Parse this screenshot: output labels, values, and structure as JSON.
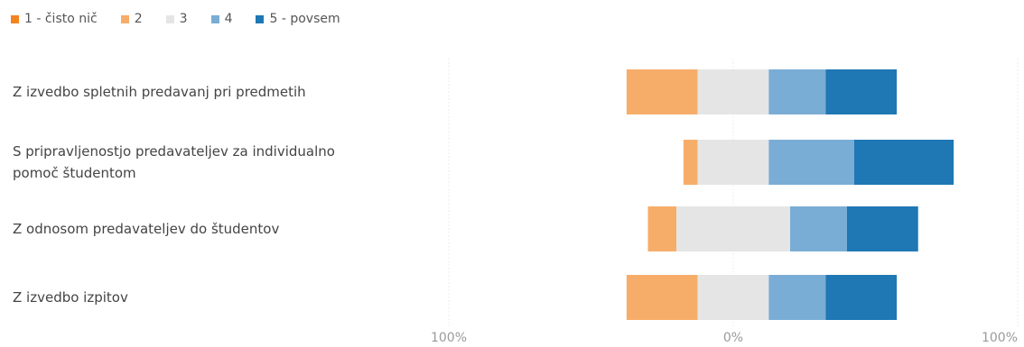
{
  "chart_data": {
    "type": "bar",
    "stacking": "diverging",
    "categories": [
      "Z izvedbo spletnih predavanj pri predmetih",
      "S pripravljenostjo predavateljev za individualno pomoč študentom",
      "Z odnosom predavateljev do študentov",
      "Z izvedbo izpitov"
    ],
    "series": [
      {
        "name": "1 - čisto nič",
        "color": "#f5841f",
        "values": [
          0,
          0,
          0,
          0
        ]
      },
      {
        "name": "2",
        "color": "#f7ad6a",
        "values": [
          25,
          5,
          10,
          25
        ]
      },
      {
        "name": "3",
        "color": "#e5e5e5",
        "values": [
          25,
          25,
          40,
          25
        ]
      },
      {
        "name": "4",
        "color": "#7aadd5",
        "values": [
          20,
          30,
          20,
          20
        ]
      },
      {
        "name": "5 - povsem",
        "color": "#1f77b4",
        "values": [
          25,
          35,
          25,
          25
        ]
      }
    ],
    "x_tick_labels": [
      "100%",
      "0%",
      "100%"
    ],
    "xlim": [
      -100,
      100
    ],
    "grid": true,
    "legend_position": "top-left"
  }
}
